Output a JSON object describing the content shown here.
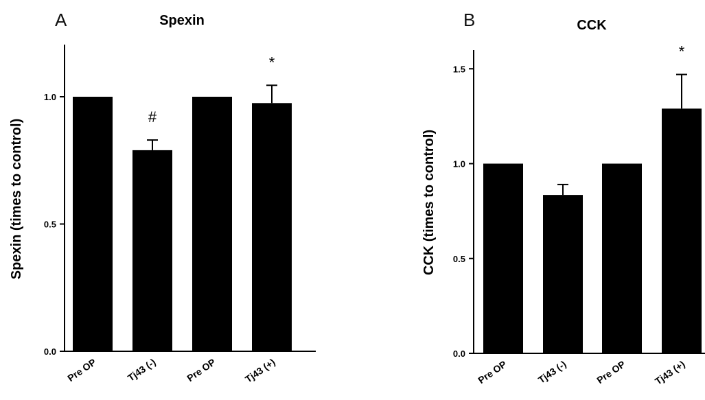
{
  "chart_data": [
    {
      "type": "bar",
      "panel": "A",
      "title": "Spexin",
      "ylabel": "Spexin (times to control)",
      "categories": [
        "Pre OP",
        "Tj43 (-)",
        "Pre OP",
        "Tj43 (+)"
      ],
      "values": [
        1.0,
        0.79,
        1.0,
        0.975
      ],
      "errors": [
        0,
        0.04,
        0,
        0.07
      ],
      "annotations": [
        "",
        "#",
        "",
        "*"
      ],
      "ylim": [
        0,
        1.2
      ],
      "yticks": [
        "0.0",
        "0.5",
        "1.0"
      ],
      "color": "#000000"
    },
    {
      "type": "bar",
      "panel": "B",
      "title": "CCK",
      "ylabel": "CCK (times to control)",
      "categories": [
        "Pre OP",
        "Tj43 (-)",
        "Pre OP",
        "Tj43 (+)"
      ],
      "values": [
        1.0,
        0.835,
        1.0,
        1.29
      ],
      "errors": [
        0,
        0.055,
        0,
        0.18
      ],
      "annotations": [
        "",
        "",
        "",
        "*"
      ],
      "ylim": [
        0,
        1.6
      ],
      "yticks": [
        "0.0",
        "0.5",
        "1.0",
        "1.5"
      ],
      "color": "#000000"
    }
  ]
}
